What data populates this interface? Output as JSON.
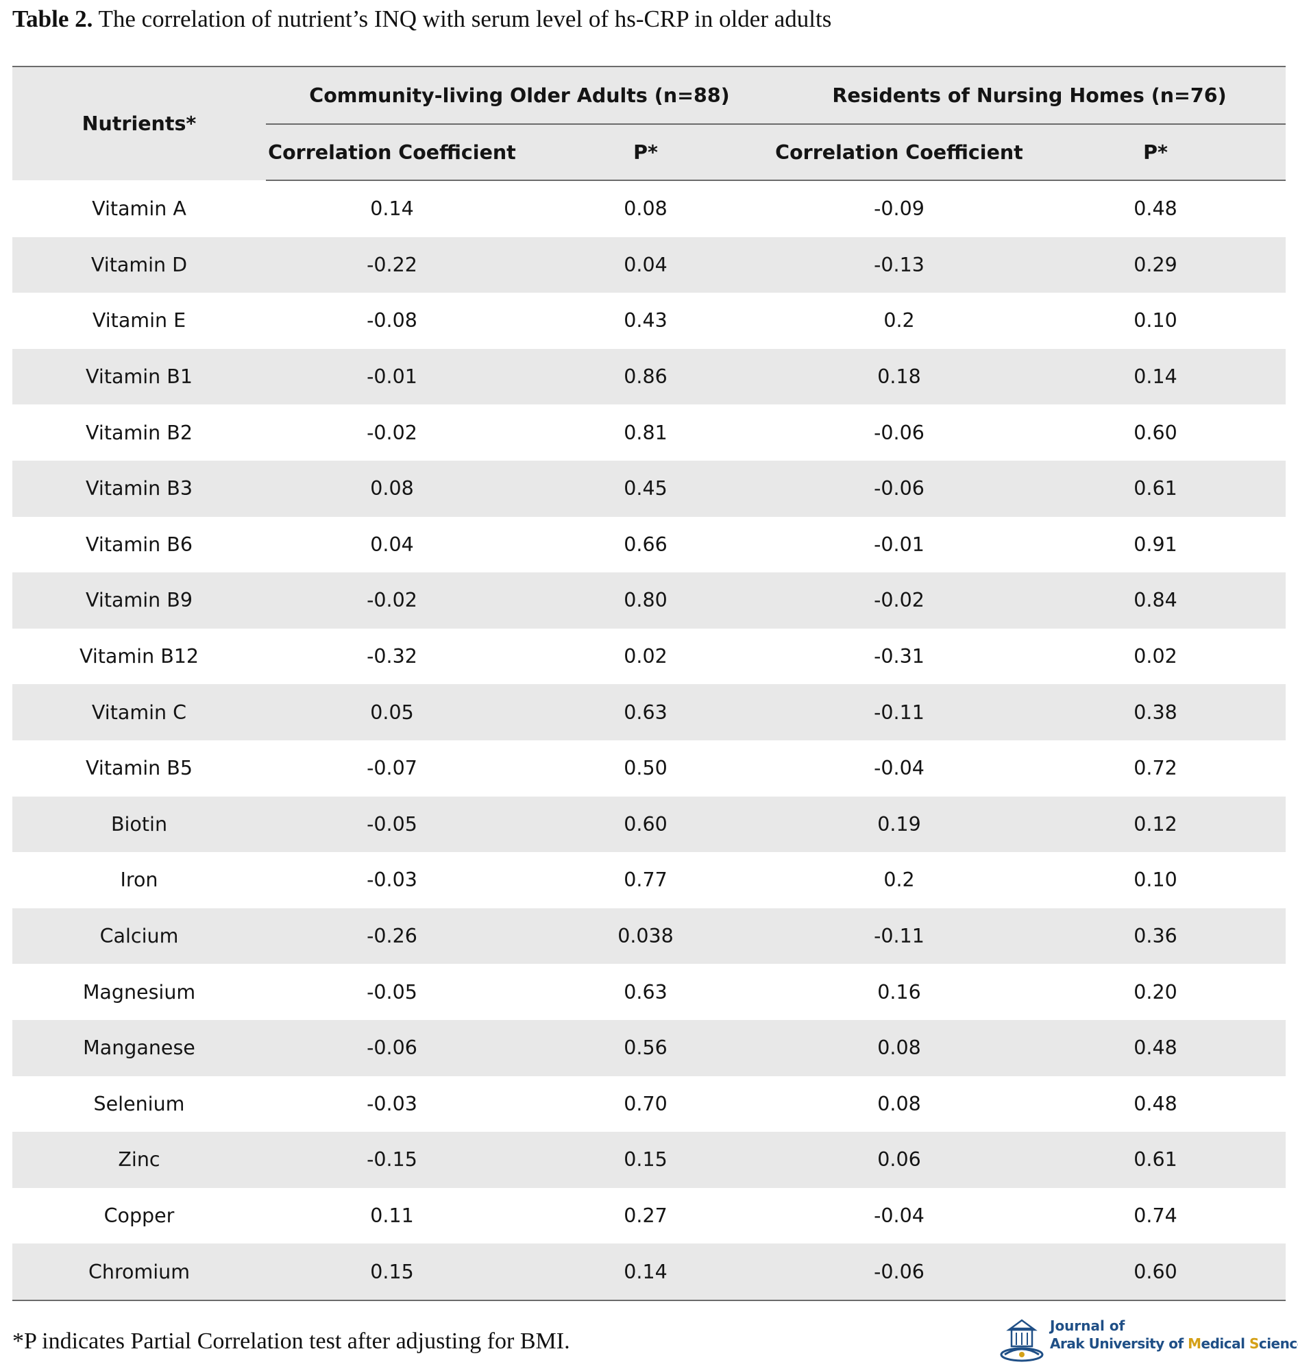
{
  "caption": {
    "label": "Table 2.",
    "text": " The correlation of nutrient’s INQ with serum level of hs-CRP in older adults"
  },
  "table": {
    "header": {
      "nutrients": "Nutrients*",
      "group1": "Community-living Older Adults (n=88)",
      "group2": "Residents of Nursing Homes (n=76)",
      "coef1": "Correlation Coefficient",
      "p1": "P*",
      "coef2": "Correlation Coefficient",
      "p2": "P*"
    },
    "rows": [
      {
        "nutrient": "Vitamin A",
        "c1": "0.14",
        "p1": "0.08",
        "c2": "-0.09",
        "p2": "0.48"
      },
      {
        "nutrient": "Vitamin D",
        "c1": "-0.22",
        "p1": "0.04",
        "c2": "-0.13",
        "p2": "0.29"
      },
      {
        "nutrient": "Vitamin E",
        "c1": "-0.08",
        "p1": "0.43",
        "c2": "0.2",
        "p2": "0.10"
      },
      {
        "nutrient": "Vitamin B1",
        "c1": "-0.01",
        "p1": "0.86",
        "c2": "0.18",
        "p2": "0.14"
      },
      {
        "nutrient": "Vitamin B2",
        "c1": "-0.02",
        "p1": "0.81",
        "c2": "-0.06",
        "p2": "0.60"
      },
      {
        "nutrient": "Vitamin B3",
        "c1": "0.08",
        "p1": "0.45",
        "c2": "-0.06",
        "p2": "0.61"
      },
      {
        "nutrient": "Vitamin B6",
        "c1": "0.04",
        "p1": "0.66",
        "c2": "-0.01",
        "p2": "0.91"
      },
      {
        "nutrient": "Vitamin B9",
        "c1": "-0.02",
        "p1": "0.80",
        "c2": "-0.02",
        "p2": "0.84"
      },
      {
        "nutrient": "Vitamin B12",
        "c1": "-0.32",
        "p1": "0.02",
        "c2": "-0.31",
        "p2": "0.02"
      },
      {
        "nutrient": "Vitamin C",
        "c1": "0.05",
        "p1": "0.63",
        "c2": "-0.11",
        "p2": "0.38"
      },
      {
        "nutrient": "Vitamin B5",
        "c1": "-0.07",
        "p1": "0.50",
        "c2": "-0.04",
        "p2": "0.72"
      },
      {
        "nutrient": "Biotin",
        "c1": "-0.05",
        "p1": "0.60",
        "c2": "0.19",
        "p2": "0.12"
      },
      {
        "nutrient": "Iron",
        "c1": "-0.03",
        "p1": "0.77",
        "c2": "0.2",
        "p2": "0.10"
      },
      {
        "nutrient": "Calcium",
        "c1": "-0.26",
        "p1": "0.038",
        "c2": "-0.11",
        "p2": "0.36"
      },
      {
        "nutrient": "Magnesium",
        "c1": "-0.05",
        "p1": "0.63",
        "c2": "0.16",
        "p2": "0.20"
      },
      {
        "nutrient": "Manganese",
        "c1": "-0.06",
        "p1": "0.56",
        "c2": "0.08",
        "p2": "0.48"
      },
      {
        "nutrient": "Selenium",
        "c1": "-0.03",
        "p1": "0.70",
        "c2": "0.08",
        "p2": "0.48"
      },
      {
        "nutrient": "Zinc",
        "c1": "-0.15",
        "p1": "0.15",
        "c2": "0.06",
        "p2": "0.61"
      },
      {
        "nutrient": "Copper",
        "c1": "0.11",
        "p1": "0.27",
        "c2": "-0.04",
        "p2": "0.74"
      },
      {
        "nutrient": "Chromium",
        "c1": "0.15",
        "p1": "0.14",
        "c2": "-0.06",
        "p2": "0.60"
      }
    ]
  },
  "footnote": "*P indicates Partial Correlation test after adjusting for BMI.",
  "journal": {
    "line1": "Journal of",
    "line2_a": "Arak University of ",
    "line2_b": "M",
    "line2_c": "edical ",
    "line2_d": "S",
    "line2_e": "ciences",
    "icon": "journal-emblem-icon",
    "colors": {
      "primary": "#1f4f86",
      "accent": "#d4a017"
    }
  }
}
